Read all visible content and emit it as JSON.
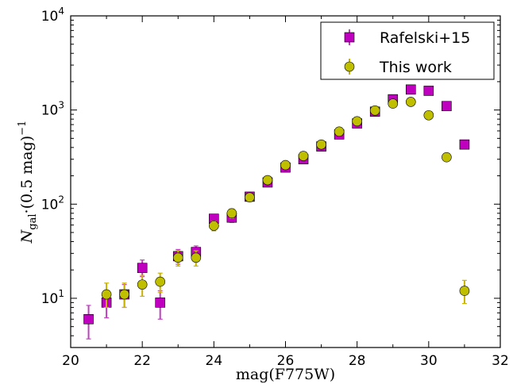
{
  "chart_data": {
    "type": "scatter",
    "title": "",
    "xlabel": "mag(F775W)",
    "ylabel_main": "N",
    "ylabel_sub": "gal",
    "ylabel_rest": "·(0.5 mag)",
    "ylabel_sup": "−1",
    "xlim": [
      20,
      32
    ],
    "ylim": [
      3,
      10000
    ],
    "yscale": "log",
    "grid": false,
    "legend_position": "top-right",
    "x_ticks": [
      20,
      22,
      24,
      26,
      28,
      30,
      32
    ],
    "x_tick_labels": [
      "20",
      "22",
      "24",
      "26",
      "28",
      "30",
      "32"
    ],
    "y_ticks": [
      10,
      100,
      1000,
      10000
    ],
    "y_tick_base": "10",
    "y_tick_exponents": [
      "1",
      "2",
      "3",
      "4"
    ],
    "series": [
      {
        "name": "Rafelski+15",
        "marker": "square",
        "color": "#bf00bf",
        "errcolor": "#c040c0",
        "points": [
          {
            "x": 20.5,
            "y": 6,
            "lo": 3.7,
            "hi": 8.4
          },
          {
            "x": 21.0,
            "y": 9,
            "lo": 6.2,
            "hi": 12
          },
          {
            "x": 21.5,
            "y": 11,
            "lo": 8.0,
            "hi": 14
          },
          {
            "x": 22.0,
            "y": 21,
            "lo": 17,
            "hi": 25.5
          },
          {
            "x": 22.5,
            "y": 9,
            "lo": 6.0,
            "hi": 12
          },
          {
            "x": 23.0,
            "y": 28,
            "lo": 23,
            "hi": 33
          },
          {
            "x": 23.5,
            "y": 31,
            "lo": 26,
            "hi": 36
          },
          {
            "x": 24.0,
            "y": 70,
            "lo": 62,
            "hi": 78
          },
          {
            "x": 24.5,
            "y": 72,
            "lo": 64,
            "hi": 80
          },
          {
            "x": 25.0,
            "y": 120,
            "lo": 110,
            "hi": 131
          },
          {
            "x": 25.5,
            "y": 170,
            "lo": 157,
            "hi": 183
          },
          {
            "x": 26.0,
            "y": 245,
            "lo": 229,
            "hi": 261
          },
          {
            "x": 26.5,
            "y": 300,
            "lo": 283,
            "hi": 317
          },
          {
            "x": 27.0,
            "y": 410,
            "lo": 390,
            "hi": 430
          },
          {
            "x": 27.5,
            "y": 550,
            "lo": 527,
            "hi": 573
          },
          {
            "x": 28.0,
            "y": 720,
            "lo": 693,
            "hi": 747
          },
          {
            "x": 28.5,
            "y": 960,
            "lo": 929,
            "hi": 991
          },
          {
            "x": 29.0,
            "y": 1300,
            "lo": 1264,
            "hi": 1336
          },
          {
            "x": 29.5,
            "y": 1650,
            "lo": 1610,
            "hi": 1690
          },
          {
            "x": 30.0,
            "y": 1600,
            "lo": 1560,
            "hi": 1640
          },
          {
            "x": 30.5,
            "y": 1100,
            "lo": 1067,
            "hi": 1133
          },
          {
            "x": 31.0,
            "y": 430,
            "lo": 409,
            "hi": 451
          }
        ]
      },
      {
        "name": "This work",
        "marker": "circle",
        "color": "#bfbf00",
        "errcolor": "#c8b400",
        "points": [
          {
            "x": 21.0,
            "y": 11,
            "lo": 8.0,
            "hi": 14.5
          },
          {
            "x": 21.5,
            "y": 11,
            "lo": 8.0,
            "hi": 14.5
          },
          {
            "x": 22.0,
            "y": 14,
            "lo": 10.5,
            "hi": 17.5
          },
          {
            "x": 22.5,
            "y": 15,
            "lo": 11.5,
            "hi": 18.5
          },
          {
            "x": 23.0,
            "y": 27,
            "lo": 22,
            "hi": 32
          },
          {
            "x": 23.5,
            "y": 27,
            "lo": 22,
            "hi": 32
          },
          {
            "x": 24.0,
            "y": 59,
            "lo": 52,
            "hi": 66
          },
          {
            "x": 24.5,
            "y": 80,
            "lo": 71,
            "hi": 89
          },
          {
            "x": 25.0,
            "y": 118,
            "lo": 107,
            "hi": 129
          },
          {
            "x": 25.5,
            "y": 180,
            "lo": 167,
            "hi": 193
          },
          {
            "x": 26.0,
            "y": 260,
            "lo": 244,
            "hi": 276
          },
          {
            "x": 26.5,
            "y": 325,
            "lo": 307,
            "hi": 343
          },
          {
            "x": 27.0,
            "y": 430,
            "lo": 409,
            "hi": 451
          },
          {
            "x": 27.5,
            "y": 590,
            "lo": 566,
            "hi": 614
          },
          {
            "x": 28.0,
            "y": 760,
            "lo": 732,
            "hi": 788
          },
          {
            "x": 28.5,
            "y": 990,
            "lo": 958,
            "hi": 1022
          },
          {
            "x": 29.0,
            "y": 1170,
            "lo": 1136,
            "hi": 1204
          },
          {
            "x": 29.5,
            "y": 1220,
            "lo": 1185,
            "hi": 1255
          },
          {
            "x": 30.0,
            "y": 880,
            "lo": 850,
            "hi": 910
          },
          {
            "x": 30.5,
            "y": 315,
            "lo": 297,
            "hi": 333
          },
          {
            "x": 31.0,
            "y": 12,
            "lo": 8.8,
            "hi": 15.5
          }
        ]
      }
    ]
  }
}
